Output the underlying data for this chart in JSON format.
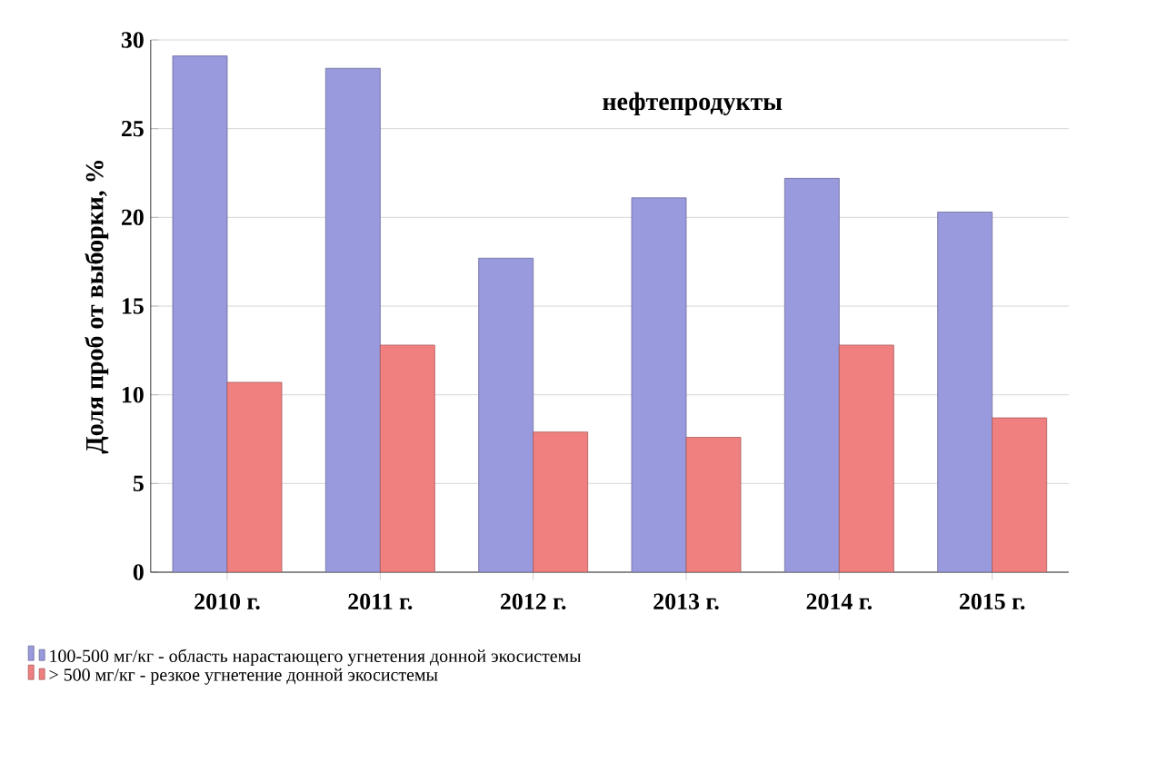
{
  "chart_data": {
    "type": "bar",
    "ylabel": "Доля проб от выборки, %",
    "annotations": [
      "нефтепродукты"
    ],
    "categories": [
      "2010 г.",
      "2011 г.",
      "2012 г.",
      "2013 г.",
      "2014 г.",
      "2015 г."
    ],
    "series": [
      {
        "name": "100-500 мг/кг - область нарастающего угнетения донной экосистемы",
        "color": "#9999dd",
        "values": [
          29.1,
          28.4,
          17.7,
          21.1,
          22.2,
          20.3
        ]
      },
      {
        "name": "> 500 мг/кг - резкое угнетение донной экосистемы",
        "color": "#f08080",
        "values": [
          10.7,
          12.8,
          7.9,
          7.6,
          12.8,
          8.7
        ]
      }
    ],
    "ylim": [
      0,
      30
    ],
    "yticks": [
      0,
      5,
      10,
      15,
      20,
      25,
      30
    ],
    "grid": "y",
    "legend": "bottom"
  }
}
